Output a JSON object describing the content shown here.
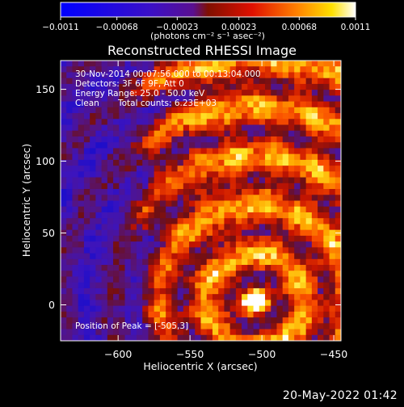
{
  "chart_data": {
    "type": "heatmap",
    "title": "Reconstructed RHESSI Image",
    "xlabel": "Heliocentric X (arcsec)",
    "ylabel": "Heliocentric Y (arcsec)",
    "xlim": [
      -640,
      -445
    ],
    "ylim": [
      -25,
      170
    ],
    "x_ticks": [
      -600,
      -550,
      -500,
      -450
    ],
    "y_ticks": [
      0,
      50,
      100,
      150
    ],
    "x_tick_labels": [
      "−600",
      "−550",
      "−500",
      "−450"
    ],
    "y_tick_labels": [
      "0",
      "50",
      "100",
      "150"
    ],
    "colorbar": {
      "min": -0.0011,
      "max": 0.0011,
      "ticks": [
        -0.0011,
        -0.00068,
        -0.00023,
        0.00023,
        0.00068,
        0.0011
      ],
      "tick_labels": [
        "−0.0011",
        "−0.00068",
        "−0.00023",
        "0.00023",
        "0.00068",
        "0.0011"
      ],
      "unit_label": "(photons cm⁻² s⁻¹ asec⁻²)"
    },
    "annotations": {
      "time": "30-Nov-2014 00:07:56.000 to 00:13:04.000",
      "detectors": "Detectors: 3F 6F 9F, Att 0",
      "energy": "Energy Range: 25.0 - 50.0 keV",
      "clean": "Clean",
      "counts": "Total counts: 6.23E+03",
      "peak": "Position of Peak = [-505,3]"
    },
    "peak": {
      "x": -505,
      "y": 3
    }
  },
  "footer": {
    "timestamp": "20-May-2022 01:42"
  }
}
